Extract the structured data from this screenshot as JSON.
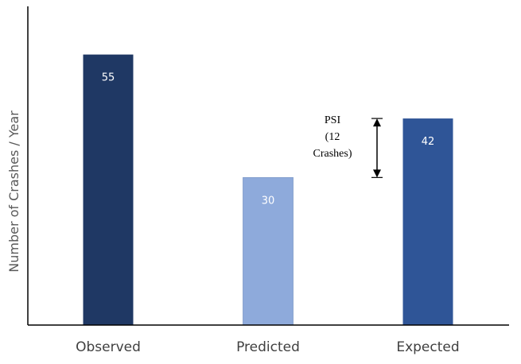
{
  "chart_data": {
    "type": "bar",
    "categories": [
      "Observed",
      "Predicted",
      "Expected"
    ],
    "values": [
      55,
      30,
      42
    ],
    "value_labels": [
      "55",
      "30",
      "42"
    ],
    "colors": [
      "#1f3864",
      "#8eaadb",
      "#2f5597"
    ],
    "title": "",
    "xlabel": "",
    "ylabel": "Number of Crashes / Year",
    "ylim": [
      0,
      60
    ],
    "grid": false,
    "annotation": {
      "lines": [
        "PSI",
        "(12",
        "Crashes)"
      ],
      "from_value": 30,
      "to_value": 42
    }
  }
}
